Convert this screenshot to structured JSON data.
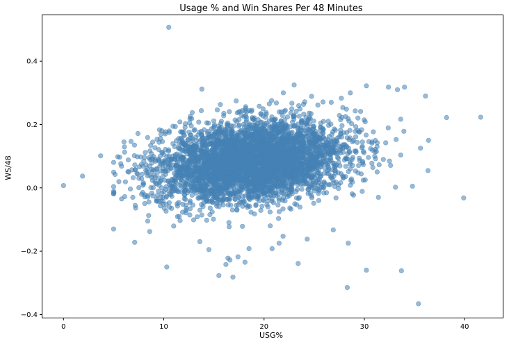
{
  "chart_data": {
    "type": "scatter",
    "title": "Usage % and Win Shares Per 48 Minutes",
    "xlabel": "USG%",
    "ylabel": "WS/48",
    "xlim": [
      -2.1,
      43.8
    ],
    "ylim": [
      -0.41,
      0.545
    ],
    "xticks": [
      0,
      10,
      20,
      30,
      40
    ],
    "yticks": [
      -0.4,
      -0.2,
      0.0,
      0.2,
      0.4
    ],
    "xtick_labels": [
      "0",
      "10",
      "20",
      "30",
      "40"
    ],
    "ytick_labels": [
      "−0.4",
      "−0.2",
      "0.0",
      "0.2",
      "0.4"
    ],
    "grid": false,
    "marker_color": "#4682b4",
    "marker_alpha": 0.55,
    "cluster": {
      "n_points": 4200,
      "x_mean": 18.8,
      "x_sd": 4.7,
      "x_min": 5.0,
      "x_max": 37.0,
      "y_mean": 0.085,
      "y_sd": 0.062,
      "y_min": -0.2,
      "y_max": 0.33,
      "y_slope_per_usg": 0.003
    },
    "points": [
      {
        "x": 10.5,
        "y": 0.507
      },
      {
        "x": 0.0,
        "y": 0.007
      },
      {
        "x": 1.9,
        "y": 0.037
      },
      {
        "x": 3.7,
        "y": 0.101
      },
      {
        "x": 5.0,
        "y": 0.004
      },
      {
        "x": 5.8,
        "y": -0.035
      },
      {
        "x": 7.1,
        "y": -0.172
      },
      {
        "x": 7.2,
        "y": -0.064
      },
      {
        "x": 8.4,
        "y": -0.105
      },
      {
        "x": 8.6,
        "y": -0.138
      },
      {
        "x": 10.3,
        "y": -0.25
      },
      {
        "x": 13.8,
        "y": 0.312
      },
      {
        "x": 13.6,
        "y": -0.17
      },
      {
        "x": 14.5,
        "y": -0.195
      },
      {
        "x": 15.5,
        "y": -0.277
      },
      {
        "x": 16.2,
        "y": -0.242
      },
      {
        "x": 16.4,
        "y": -0.222
      },
      {
        "x": 16.6,
        "y": -0.228
      },
      {
        "x": 16.9,
        "y": -0.282
      },
      {
        "x": 17.4,
        "y": -0.218
      },
      {
        "x": 18.1,
        "y": -0.235
      },
      {
        "x": 18.5,
        "y": -0.192
      },
      {
        "x": 20.8,
        "y": -0.192
      },
      {
        "x": 21.5,
        "y": -0.175
      },
      {
        "x": 21.9,
        "y": -0.153
      },
      {
        "x": 23.4,
        "y": -0.239
      },
      {
        "x": 24.3,
        "y": -0.162
      },
      {
        "x": 26.9,
        "y": -0.133
      },
      {
        "x": 28.3,
        "y": -0.315
      },
      {
        "x": 28.4,
        "y": -0.175
      },
      {
        "x": 30.2,
        "y": -0.26
      },
      {
        "x": 33.7,
        "y": -0.262
      },
      {
        "x": 35.4,
        "y": -0.366
      },
      {
        "x": 34.8,
        "y": 0.005
      },
      {
        "x": 39.9,
        "y": -0.032
      },
      {
        "x": 41.6,
        "y": 0.223
      },
      {
        "x": 38.2,
        "y": 0.222
      },
      {
        "x": 36.1,
        "y": 0.29
      },
      {
        "x": 34.0,
        "y": 0.318
      },
      {
        "x": 33.3,
        "y": 0.31
      },
      {
        "x": 32.4,
        "y": 0.318
      },
      {
        "x": 30.2,
        "y": 0.322
      },
      {
        "x": 23.0,
        "y": 0.325
      },
      {
        "x": 26.7,
        "y": 0.27
      },
      {
        "x": 36.4,
        "y": 0.15
      },
      {
        "x": 35.6,
        "y": 0.125
      },
      {
        "x": 33.1,
        "y": 0.002
      },
      {
        "x": 31.4,
        "y": -0.03
      },
      {
        "x": 28.6,
        "y": 0.3
      }
    ]
  }
}
